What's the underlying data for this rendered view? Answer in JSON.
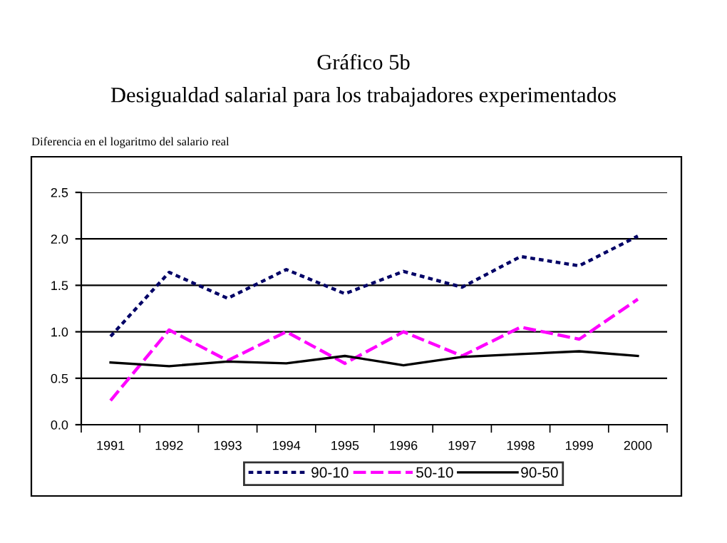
{
  "chart_data": {
    "type": "line",
    "title": "Gráfico 5b",
    "subtitle": "Desigualdad salarial para los trabajadores experimentados",
    "ylabel": "Diferencia en el logaritmo del salario real",
    "categories": [
      "1991",
      "1992",
      "1993",
      "1994",
      "1995",
      "1996",
      "1997",
      "1998",
      "1999",
      "2000"
    ],
    "series": [
      {
        "name": "90-10",
        "color": "#000066",
        "line_style": "dotted",
        "values": [
          0.95,
          1.64,
          1.36,
          1.67,
          1.41,
          1.65,
          1.48,
          1.81,
          1.71,
          2.03
        ]
      },
      {
        "name": "50-10",
        "color": "#ff00ff",
        "line_style": "dashed",
        "values": [
          0.26,
          1.02,
          0.69,
          1.0,
          0.66,
          1.0,
          0.74,
          1.05,
          0.92,
          1.35
        ]
      },
      {
        "name": "90-50",
        "color": "#000000",
        "line_style": "solid",
        "values": [
          0.67,
          0.63,
          0.68,
          0.66,
          0.74,
          0.64,
          0.73,
          0.76,
          0.79,
          0.74
        ]
      }
    ],
    "ylim": [
      0,
      2.5
    ],
    "yticks": [
      {
        "value": 0,
        "label": "0.0"
      },
      {
        "value": 0.5,
        "label": "0.5"
      },
      {
        "value": 1,
        "label": "1.0"
      },
      {
        "value": 1.5,
        "label": "1.5"
      },
      {
        "value": 2,
        "label": "2.0"
      },
      {
        "value": 2.5,
        "label": "2.5"
      }
    ],
    "grid": "y",
    "legend": "bottom",
    "marker": "none"
  }
}
